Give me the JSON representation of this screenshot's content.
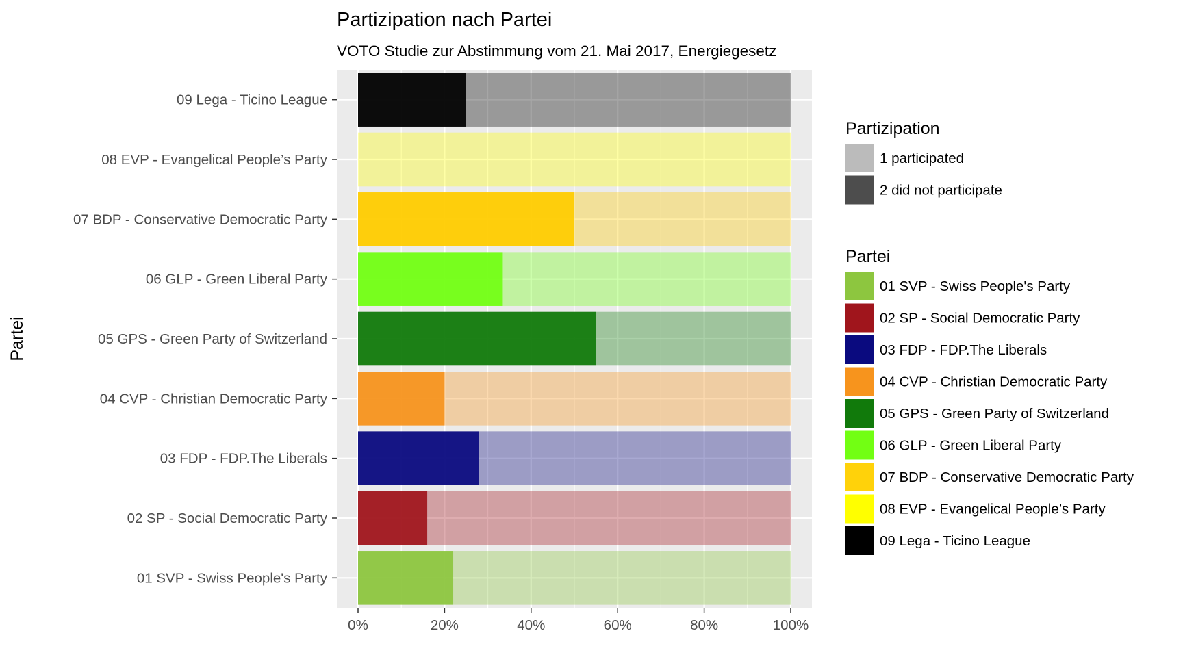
{
  "chart_data": {
    "type": "bar",
    "orientation": "horizontal",
    "stacked": "fill",
    "title": "Partizipation nach Partei",
    "subtitle": "VOTO Studie zur Abstimmung vom 21. Mai 2017, Energiegesetz",
    "ylabel": "Partei",
    "xlabel": "",
    "xlim": [
      0,
      1
    ],
    "x_ticks": [
      "0%",
      "20%",
      "40%",
      "60%",
      "80%",
      "100%"
    ],
    "x_tick_values": [
      0,
      0.2,
      0.4,
      0.6,
      0.8,
      1.0
    ],
    "grid": true,
    "categories": [
      "01 SVP - Swiss People's Party",
      "02 SP - Social Democratic Party",
      "03 FDP - FDP.The Liberals",
      "04 CVP - Christian Democratic Party",
      "05 GPS - Green Party of Switzerland",
      "06 GLP - Green Liberal Party",
      "07 BDP - Conservative Democratic Party",
      "08 EVP - Evangelical People’s Party",
      "09 Lega - Ticino League"
    ],
    "colors": [
      "#8dc63f",
      "#a0151c",
      "#0a0a7f",
      "#f7941d",
      "#117a0b",
      "#72ff13",
      "#ffcc00",
      "#ffff00",
      "#000000"
    ],
    "series": [
      {
        "name": "1 participated",
        "values": [
          0.22,
          0.16,
          0.28,
          0.2,
          0.55,
          0.333,
          0.5,
          0.0,
          0.25
        ]
      },
      {
        "name": "2 did not participate",
        "values": [
          0.78,
          0.84,
          0.72,
          0.8,
          0.45,
          0.667,
          0.5,
          1.0,
          0.75
        ]
      }
    ],
    "legends": [
      {
        "title": "Partizipation",
        "items": [
          {
            "label": "1 participated",
            "color": "#bbbbbb"
          },
          {
            "label": "2 did not participate",
            "color": "#4d4d4d"
          }
        ]
      },
      {
        "title": "Partei",
        "items": [
          {
            "label": "01 SVP - Swiss People's Party",
            "color": "#8dc63f"
          },
          {
            "label": "02 SP - Social Democratic Party",
            "color": "#a0151c"
          },
          {
            "label": "03 FDP - FDP.The Liberals",
            "color": "#0a0a7f"
          },
          {
            "label": "04 CVP - Christian Democratic Party",
            "color": "#f7941d"
          },
          {
            "label": "05 GPS - Green Party of Switzerland",
            "color": "#117a0b"
          },
          {
            "label": "06 GLP - Green Liberal Party",
            "color": "#72ff13"
          },
          {
            "label": "07 BDP - Conservative Democratic Party",
            "color": "#ffd20a"
          },
          {
            "label": "08 EVP - Evangelical People’s Party",
            "color": "#ffff00"
          },
          {
            "label": "09 Lega - Ticino League",
            "color": "#000000"
          }
        ]
      }
    ],
    "legend_position": "right"
  }
}
